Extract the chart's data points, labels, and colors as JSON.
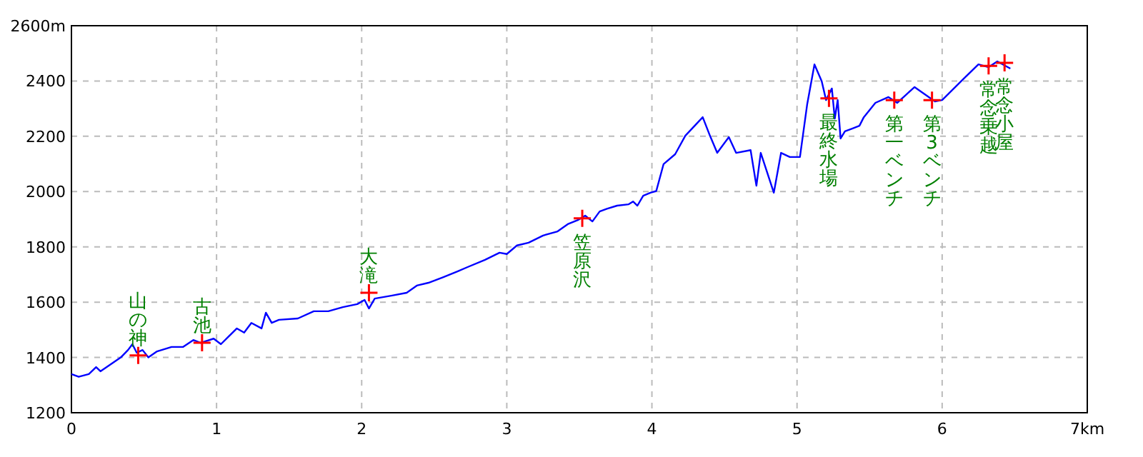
{
  "chart_data": {
    "type": "line",
    "xlim": [
      0,
      7
    ],
    "ylim": [
      1200,
      2600
    ],
    "xticks": [
      0,
      1,
      2,
      3,
      4,
      5,
      6,
      {
        "value": 7,
        "label": "7km"
      }
    ],
    "yticks": [
      1200,
      1400,
      1600,
      1800,
      2000,
      2200,
      2400,
      {
        "value": 2600,
        "label": "2600m"
      }
    ],
    "grid": true,
    "series": [
      {
        "color": "#0000ff",
        "x": [
          0,
          0.05,
          0.12,
          0.17,
          0.2,
          0.27,
          0.34,
          0.39,
          0.42,
          0.45,
          0.49,
          0.53,
          0.59,
          0.69,
          0.77,
          0.84,
          0.89,
          0.98,
          1.03,
          1.08,
          1.14,
          1.19,
          1.24,
          1.31,
          1.34,
          1.38,
          1.43,
          1.56,
          1.67,
          1.77,
          1.87,
          1.97,
          2.02,
          2.05,
          2.09,
          2.21,
          2.31,
          2.38,
          2.46,
          2.56,
          2.66,
          2.73,
          2.85,
          2.95,
          3.0,
          3.07,
          3.15,
          3.25,
          3.35,
          3.42,
          3.49,
          3.54,
          3.59,
          3.64,
          3.69,
          3.76,
          3.84,
          3.87,
          3.9,
          3.94,
          3.99,
          4.03,
          4.08,
          4.16,
          4.23,
          4.35,
          4.4,
          4.45,
          4.53,
          4.58,
          4.68,
          4.72,
          4.75,
          4.84,
          4.89,
          4.95,
          5.02,
          5.07,
          5.12,
          5.17,
          5.2,
          5.24,
          5.26,
          5.28,
          5.3,
          5.33,
          5.38,
          5.43,
          5.46,
          5.54,
          5.63,
          5.69,
          5.81,
          5.95,
          6.0,
          6.15,
          6.25,
          6.32,
          6.38,
          6.47
        ],
        "values": [
          1340,
          1330,
          1340,
          1365,
          1350,
          1375,
          1400,
          1427,
          1448,
          1417,
          1427,
          1400,
          1422,
          1438,
          1438,
          1463,
          1453,
          1468,
          1448,
          1474,
          1505,
          1490,
          1525,
          1505,
          1562,
          1525,
          1536,
          1541,
          1567,
          1567,
          1582,
          1593,
          1608,
          1577,
          1613,
          1624,
          1634,
          1660,
          1670,
          1690,
          1711,
          1727,
          1753,
          1779,
          1774,
          1805,
          1815,
          1841,
          1856,
          1882,
          1897,
          1913,
          1892,
          1928,
          1938,
          1949,
          1954,
          1964,
          1949,
          1985,
          1996,
          2002,
          2099,
          2135,
          2202,
          2269,
          2202,
          2140,
          2197,
          2140,
          2150,
          2021,
          2140,
          1996,
          2140,
          2125,
          2125,
          2316,
          2460,
          2399,
          2331,
          2373,
          2264,
          2331,
          2192,
          2218,
          2228,
          2238,
          2269,
          2321,
          2342,
          2321,
          2378,
          2326,
          2331,
          2409,
          2460,
          2450,
          2471,
          2445
        ]
      },
      {
        "type": "scatter",
        "color": "#ff0000",
        "marker": "cross",
        "x": [
          0.46,
          0.9,
          2.05,
          3.52,
          5.22,
          5.67,
          5.93,
          6.32,
          6.43
        ],
        "values": [
          1407,
          1453,
          1634,
          1903,
          2337,
          2331,
          2331,
          2455,
          2466
        ]
      }
    ],
    "annotations": [
      {
        "text": "山の神",
        "x": 0.46,
        "y": 1407
      },
      {
        "text": "古池",
        "x": 0.9,
        "y": 1453
      },
      {
        "text": "大滝",
        "x": 2.05,
        "y": 1634
      },
      {
        "text": "笠原沢",
        "x": 3.52,
        "y": 1903
      },
      {
        "text": "最終水場",
        "x": 5.22,
        "y": 2337
      },
      {
        "text": "第一ベンチ",
        "x": 5.67,
        "y": 2331
      },
      {
        "text": "第3ベンチ",
        "x": 5.93,
        "y": 2331
      },
      {
        "text": "常念乗越",
        "x": 6.32,
        "y": 2455
      },
      {
        "text": "常念小屋",
        "x": 6.43,
        "y": 2466
      }
    ]
  }
}
